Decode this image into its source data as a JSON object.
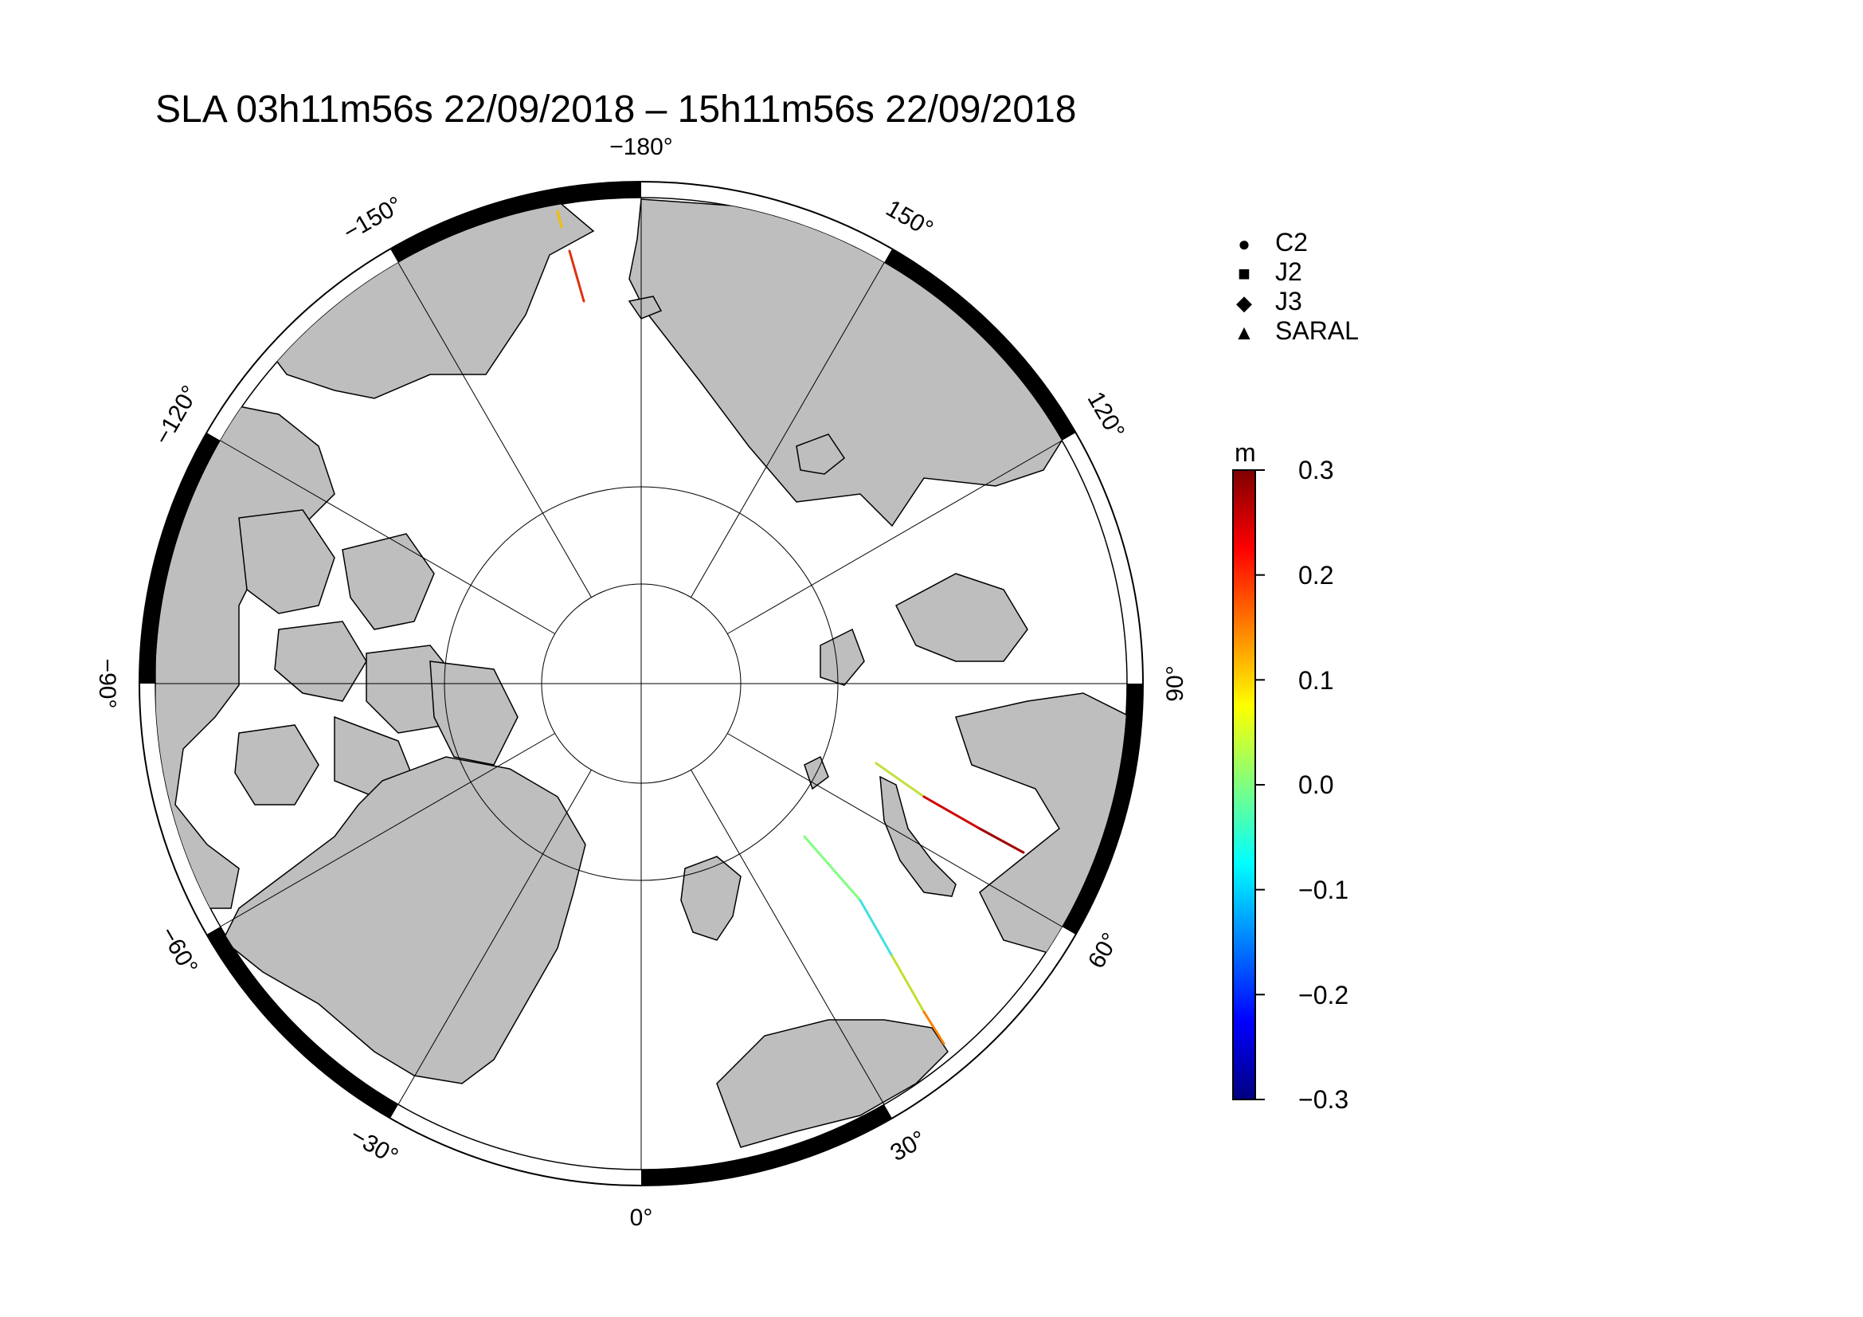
{
  "title": "SLA 03h11m56s 22/09/2018 – 15h11m56s 22/09/2018",
  "map": {
    "projection": "north polar stereographic",
    "land_color": "#bebebe",
    "ocean_color": "#ffffff",
    "longitude_labels": [
      {
        "lon": -180,
        "text": "−180"
      },
      {
        "lon": -150,
        "text": "−150"
      },
      {
        "lon": -120,
        "text": "−120"
      },
      {
        "lon": -90,
        "text": "−90"
      },
      {
        "lon": -60,
        "text": "−60"
      },
      {
        "lon": -30,
        "text": "−30"
      },
      {
        "lon": 0,
        "text": "0"
      },
      {
        "lon": 30,
        "text": "30"
      },
      {
        "lon": 60,
        "text": "60"
      },
      {
        "lon": 90,
        "text": "90"
      },
      {
        "lon": 120,
        "text": "120"
      },
      {
        "lon": 150,
        "text": "150"
      }
    ],
    "degree_symbol": "°",
    "latitude_circles": [
      70,
      80
    ]
  },
  "legend": {
    "items": [
      {
        "symbol": "circle-icon",
        "glyph": "●",
        "label": "C2"
      },
      {
        "symbol": "square-icon",
        "glyph": "■",
        "label": "J2"
      },
      {
        "symbol": "diamond-icon",
        "glyph": "◆",
        "label": "J3"
      },
      {
        "symbol": "triangle-icon",
        "glyph": "▲",
        "label": "SARAL"
      }
    ]
  },
  "colorbar": {
    "unit": "m",
    "min": -0.3,
    "max": 0.3,
    "ticks": [
      "0.3",
      "0.2",
      "0.1",
      "0.0",
      "−0.1",
      "−0.2",
      "−0.3"
    ],
    "colormap": [
      "#00007f",
      "#0000ff",
      "#007fff",
      "#00ffff",
      "#7fff7f",
      "#ffff00",
      "#ff7f00",
      "#ff0000",
      "#7f0000"
    ]
  }
}
